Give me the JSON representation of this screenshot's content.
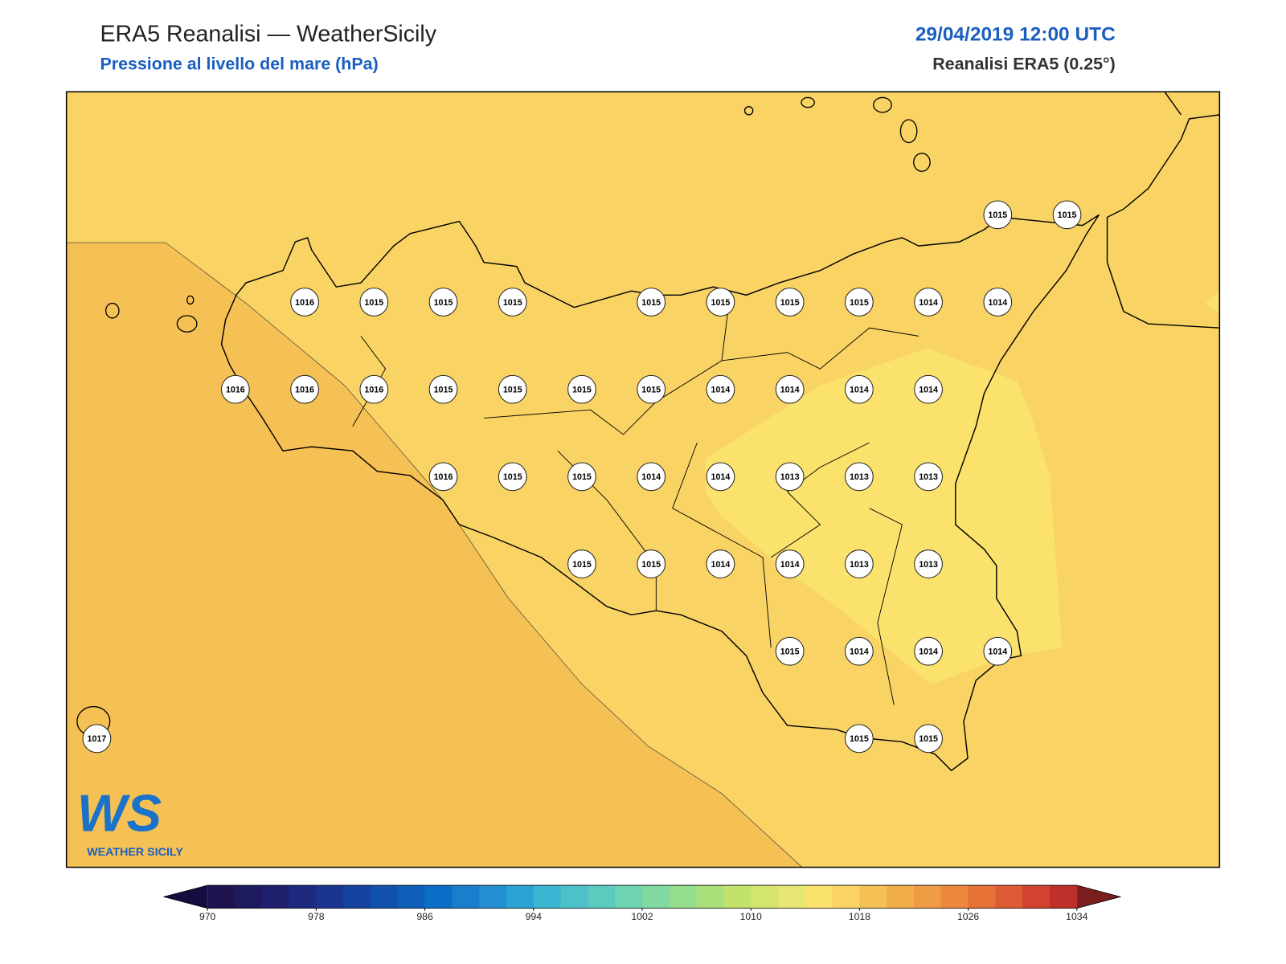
{
  "header": {
    "title": "ERA5 Reanalisi — WeatherSicily",
    "subtitle": "Pressione al livello del mare (hPa)",
    "date": "29/04/2019 12:00 UTC",
    "source": "Reanalisi ERA5 (0.25°)"
  },
  "stations": {
    "values": [
      1015,
      1015,
      1016,
      1015,
      1015,
      1015,
      1015,
      1015,
      1015,
      1015,
      1014,
      1014,
      1016,
      1016,
      1016,
      1015,
      1015,
      1015,
      1015,
      1014,
      1014,
      1014,
      1014,
      1016,
      1015,
      1015,
      1014,
      1014,
      1013,
      1013,
      1013,
      1015,
      1015,
      1014,
      1014,
      1013,
      1013,
      1015,
      1014,
      1014,
      1014,
      1017,
      1015,
      1015
    ]
  },
  "colorbar": {
    "clim": [
      970,
      1034
    ],
    "ticks": [
      970,
      978,
      986,
      994,
      1002,
      1010,
      1018,
      1026,
      1034
    ],
    "colors": [
      "#1f1450",
      "#1e1a5e",
      "#1f216e",
      "#1d2a80",
      "#1a3590",
      "#16429f",
      "#1150ad",
      "#0e5fba",
      "#0b6ec6",
      "#1a7ecd",
      "#2590d1",
      "#2ba3d3",
      "#3ab6d2",
      "#4cc1c9",
      "#5ccbbf",
      "#6dd3b3",
      "#80d9a0",
      "#94dd8c",
      "#aae07a",
      "#c1e36c",
      "#d4e56b",
      "#e6e772",
      "#fbe26c",
      "#f9d464",
      "#f5c054",
      "#f3ae4c",
      "#f09c45",
      "#ec873e",
      "#e67238",
      "#dd5a33",
      "#d1432f",
      "#c0302b"
    ],
    "under_color": "#150d40",
    "over_color": "#7a1e1e"
  },
  "logo": {
    "mark": "WS",
    "text": "WEATHER SICILY"
  }
}
